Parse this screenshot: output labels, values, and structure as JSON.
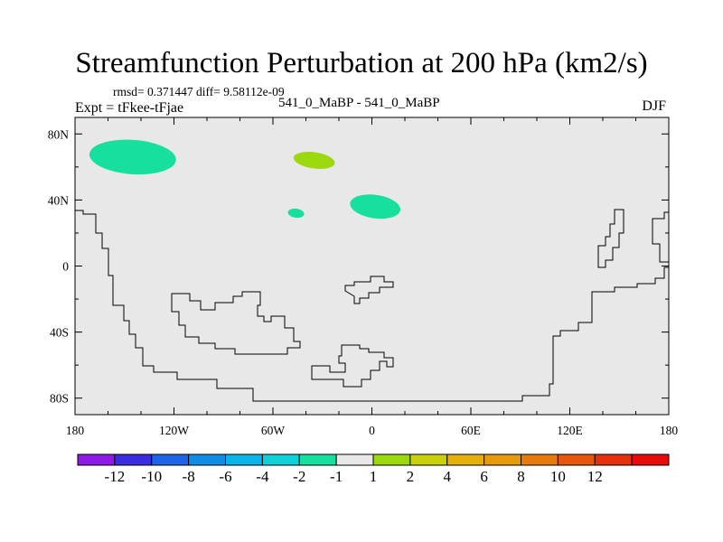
{
  "title": "Streamfunction Perturbation at 200 hPa (km2/s)",
  "stats": "rmsd= 0.371447 diff= 9.58112e-09",
  "experiment": "Expt = tFkee-tFjae",
  "case": "541_0_MaBP - 541_0_MaBP",
  "season": "DJF",
  "map": {
    "background_color": "#e8e8e8",
    "lat_ticks": [
      "80N",
      "40N",
      "0",
      "40S",
      "80S"
    ],
    "lon_ticks": [
      "180",
      "120W",
      "60W",
      "0",
      "60E",
      "120E",
      "180"
    ]
  },
  "colorbar": {
    "colors": [
      "#8e1ae6",
      "#3a2de0",
      "#1f63e6",
      "#118ce6",
      "#0ab4e6",
      "#10d0d8",
      "#17e09e",
      "#e8e8e8",
      "#9bd80d",
      "#c9d10c",
      "#e6b00c",
      "#e69a0c",
      "#e67a0c",
      "#e6560c",
      "#e6320c",
      "#e60c0c"
    ],
    "labels": [
      "-12",
      "-10",
      "-8",
      "-6",
      "-4",
      "-2",
      "-1",
      "1",
      "2",
      "4",
      "6",
      "8",
      "10",
      "12"
    ]
  },
  "anomalies": [
    {
      "value_range": "-2 to -1",
      "color": "#17e09e",
      "center_lon": -145,
      "center_lat": 66
    },
    {
      "value_range": "1 to 2",
      "color": "#9bd80d",
      "center_lon": -35,
      "center_lat": 64
    },
    {
      "value_range": "-2 to -1",
      "color": "#17e09e",
      "center_lon": 2,
      "center_lat": 36
    },
    {
      "value_range": "-2 to -1",
      "color": "#17e09e",
      "center_lon": -46,
      "center_lat": 32
    }
  ]
}
